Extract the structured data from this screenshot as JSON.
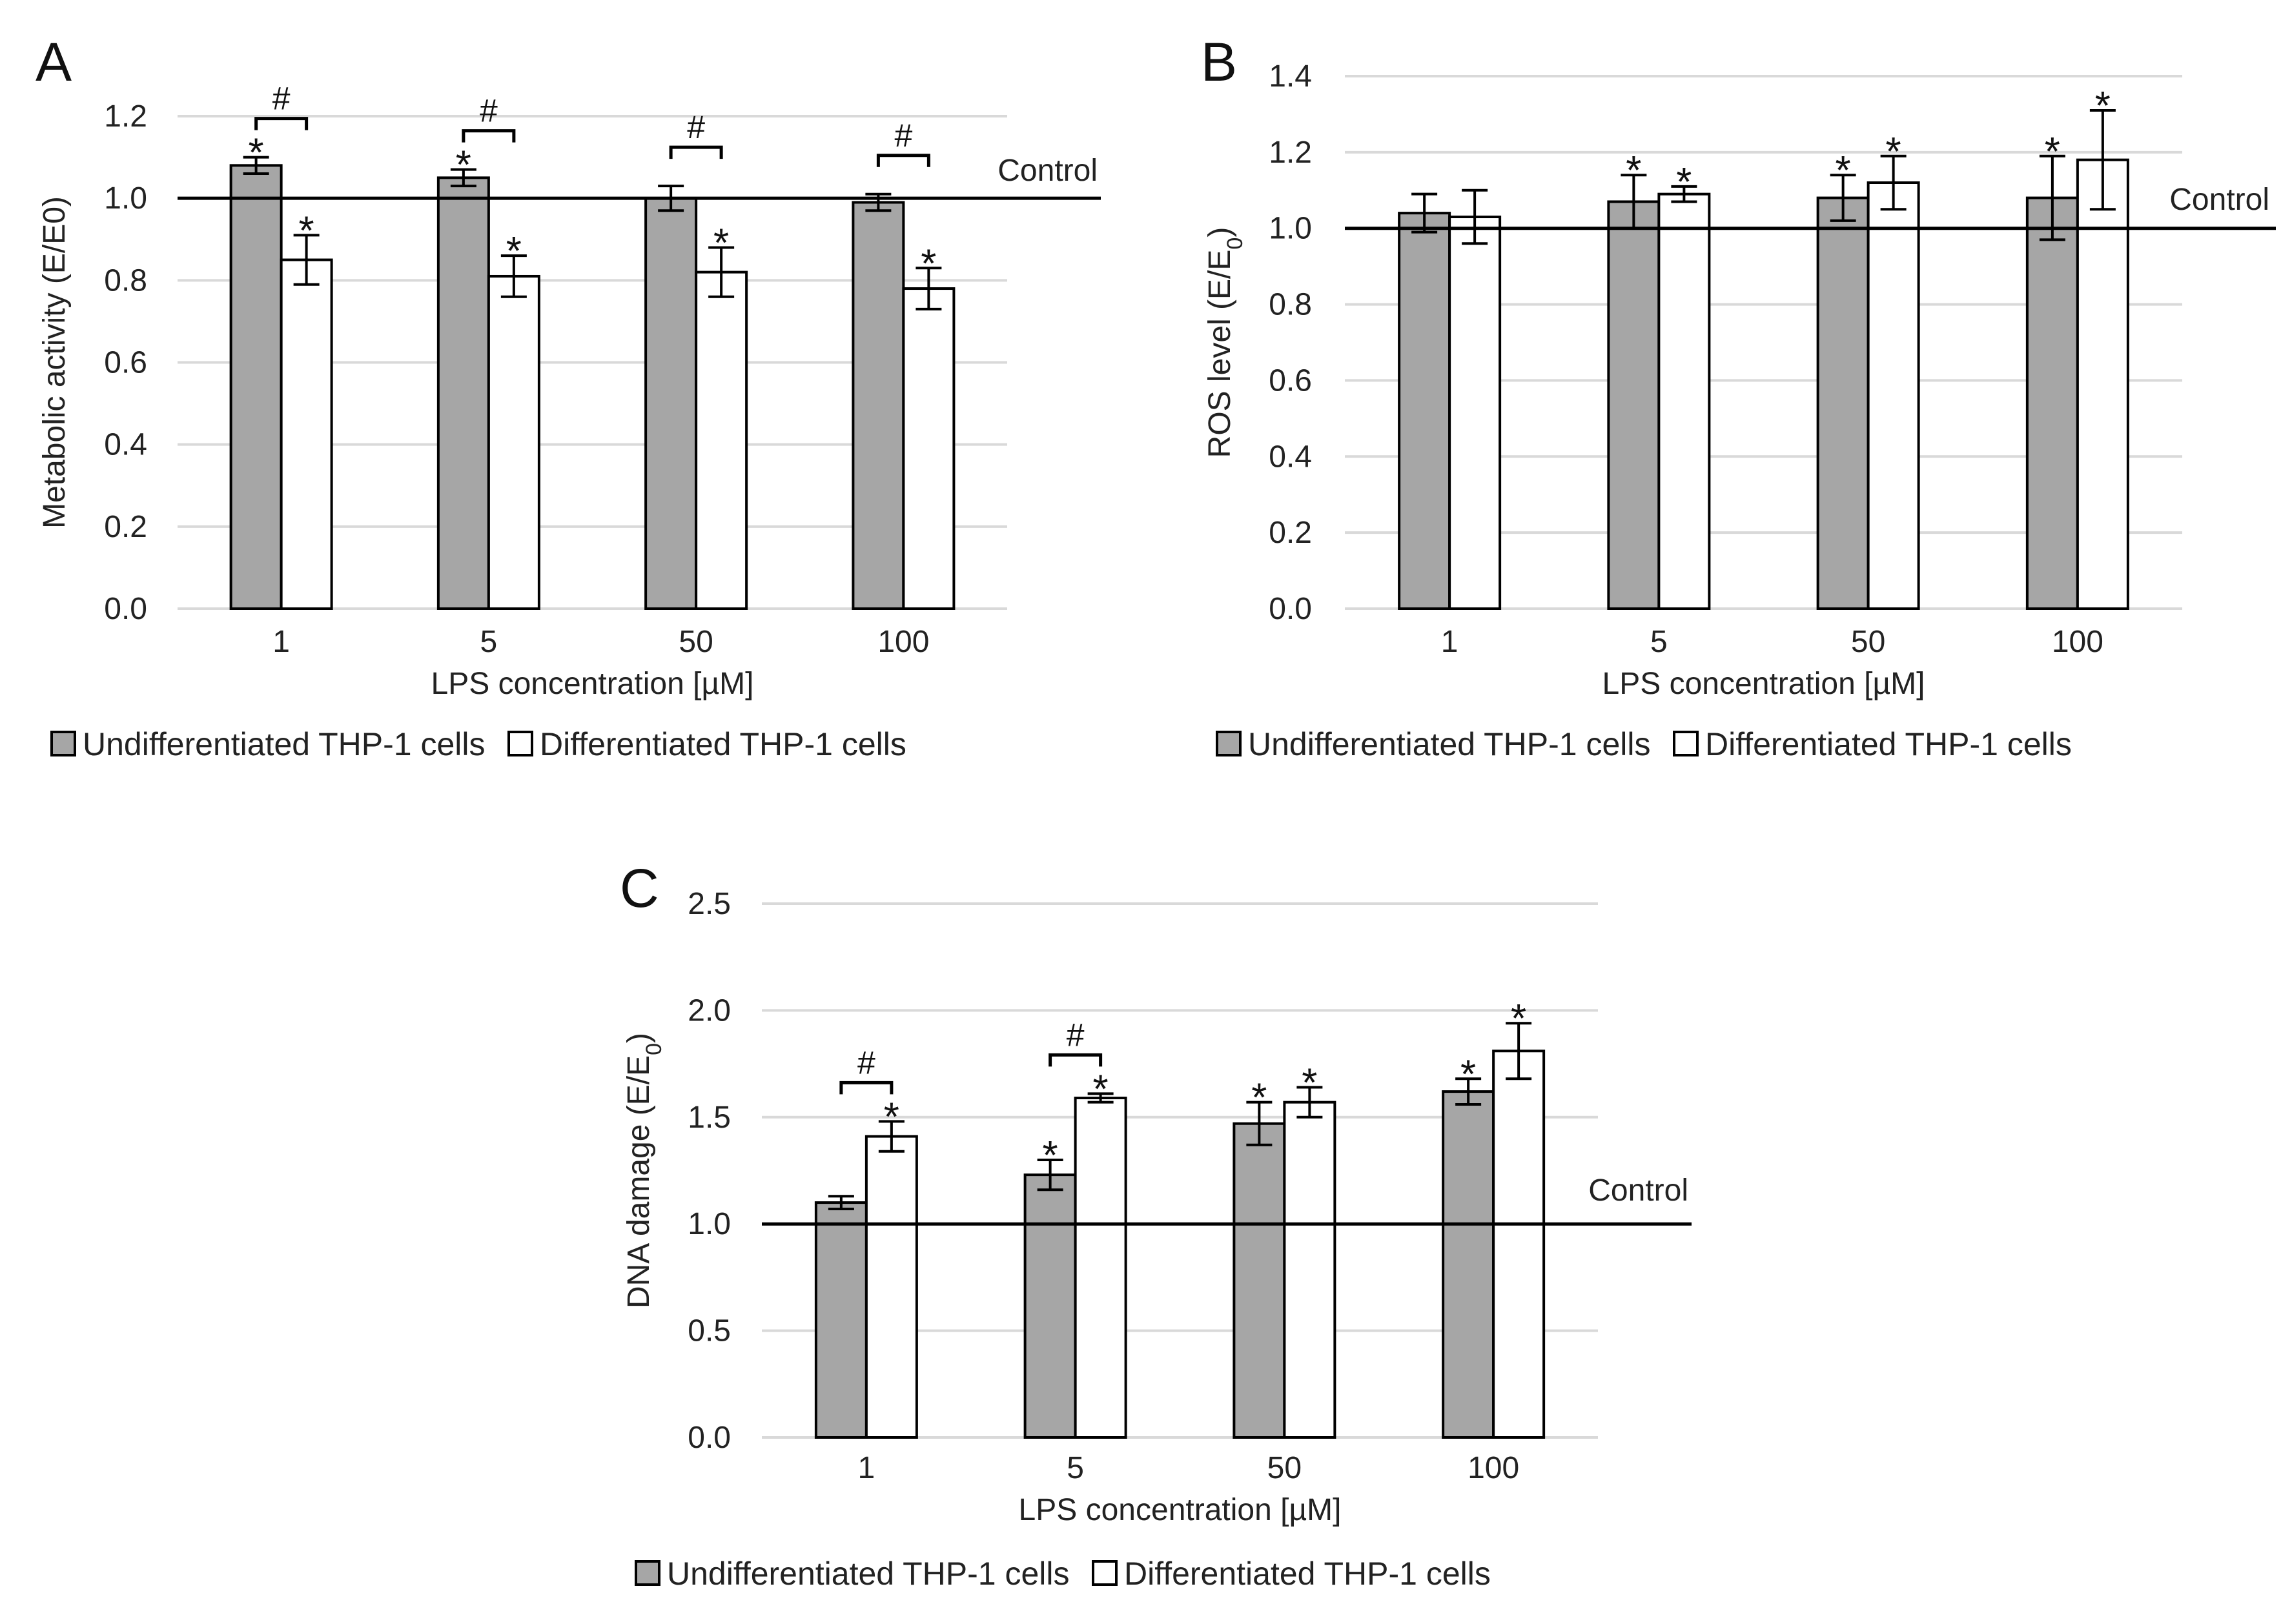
{
  "colors": {
    "undifferentiated": "#a6a6a6",
    "differentiated": "#ffffff",
    "gridline": "#d9d9d9",
    "stroke": "#000000"
  },
  "legend": {
    "undifferentiated": "Undifferentiated THP-1 cells",
    "differentiated": "Differentiated THP-1 cells"
  },
  "control_label": "Control",
  "significance_marks": {
    "vs_control": "*",
    "between_groups": "#"
  },
  "chart_data": [
    {
      "panel": "A",
      "type": "bar",
      "xlabel": "LPS concentration [µM]",
      "ylabel": "Metabolic activity (E/E0)",
      "categories": [
        "1",
        "5",
        "50",
        "100"
      ],
      "ylim": [
        0,
        1.2
      ],
      "yticks": [
        "0.0",
        "0.2",
        "0.4",
        "0.6",
        "0.8",
        "1.0",
        "1.2"
      ],
      "control_value": 1.0,
      "series": [
        {
          "name": "Undifferentiated THP-1 cells",
          "values": [
            1.08,
            1.05,
            1.0,
            0.99
          ],
          "errors": [
            0.02,
            0.02,
            0.03,
            0.02
          ],
          "star": [
            true,
            true,
            false,
            false
          ]
        },
        {
          "name": "Differentiated THP-1 cells",
          "values": [
            0.85,
            0.81,
            0.82,
            0.78
          ],
          "errors": [
            0.06,
            0.05,
            0.06,
            0.05
          ],
          "star": [
            true,
            true,
            true,
            true
          ]
        }
      ],
      "hash": [
        true,
        true,
        true,
        true
      ]
    },
    {
      "panel": "B",
      "type": "bar",
      "xlabel": "LPS concentration [µM]",
      "ylabel": "ROS level (E/E",
      "ylabel_sub": "0",
      "ylabel_end": ")",
      "categories": [
        "1",
        "5",
        "50",
        "100"
      ],
      "ylim": [
        0,
        1.4
      ],
      "yticks": [
        "0.0",
        "0.2",
        "0.4",
        "0.6",
        "0.8",
        "1.0",
        "1.2",
        "1.4"
      ],
      "control_value": 1.0,
      "series": [
        {
          "name": "Undifferentiated THP-1 cells",
          "values": [
            1.04,
            1.07,
            1.08,
            1.08
          ],
          "errors": [
            0.05,
            0.07,
            0.06,
            0.11
          ],
          "star": [
            false,
            true,
            true,
            true
          ]
        },
        {
          "name": "Differentiated THP-1 cells",
          "values": [
            1.03,
            1.09,
            1.12,
            1.18
          ],
          "errors": [
            0.07,
            0.02,
            0.07,
            0.13
          ],
          "star": [
            false,
            true,
            true,
            true
          ]
        }
      ],
      "hash": [
        false,
        false,
        false,
        false
      ]
    },
    {
      "panel": "C",
      "type": "bar",
      "xlabel": "LPS concentration [µM]",
      "ylabel": "DNA damage (E/E",
      "ylabel_sub": "0",
      "ylabel_end": ")",
      "categories": [
        "1",
        "5",
        "50",
        "100"
      ],
      "ylim": [
        0,
        2.5
      ],
      "yticks": [
        "0.0",
        "0.5",
        "1.0",
        "1.5",
        "2.0",
        "2.5"
      ],
      "control_value": 1.0,
      "series": [
        {
          "name": "Undifferentiated THP-1 cells",
          "values": [
            1.1,
            1.23,
            1.47,
            1.62
          ],
          "errors": [
            0.03,
            0.07,
            0.1,
            0.06
          ],
          "star": [
            false,
            true,
            true,
            true
          ]
        },
        {
          "name": "Differentiated THP-1 cells",
          "values": [
            1.41,
            1.59,
            1.57,
            1.81
          ],
          "errors": [
            0.07,
            0.02,
            0.07,
            0.13
          ],
          "star": [
            true,
            true,
            true,
            true
          ]
        }
      ],
      "hash": [
        true,
        true,
        false,
        false
      ]
    }
  ]
}
